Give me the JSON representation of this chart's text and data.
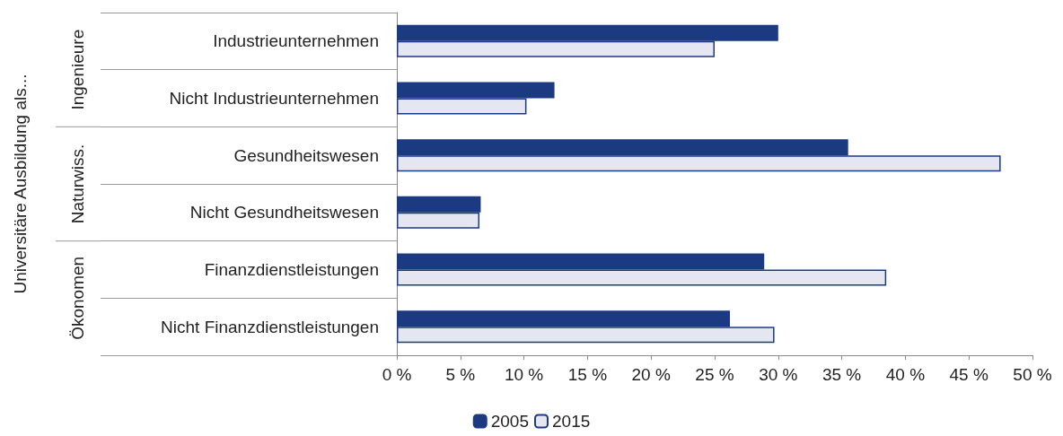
{
  "chart_data": {
    "type": "bar",
    "orientation": "horizontal",
    "categories": [
      "Industrieunternehmen",
      "Nicht Industrieunternehmen",
      "Gesundheitswesen",
      "Nicht Gesundheitswesen",
      "Finanzdienstleistungen",
      "Nicht Finanzdienstleistungen"
    ],
    "series": [
      {
        "name": "2005",
        "color": "#1c3a82",
        "values": [
          30,
          12.4,
          35.5,
          6.6,
          28.9,
          26.2
        ]
      },
      {
        "name": "2015",
        "color": "#e4e6f2",
        "values": [
          25,
          10.2,
          47.5,
          6.5,
          38.5,
          29.7
        ]
      }
    ],
    "annotations": [
      "Universitäre Ausbildung als...",
      "Ingenieure",
      "Naturwiss.",
      "Ökonomen"
    ],
    "xlim": [
      0,
      50
    ],
    "xticks": [
      {
        "value": 0,
        "label": "0 %"
      },
      {
        "value": 5,
        "label": "5 %"
      },
      {
        "value": 10,
        "label": "10 %"
      },
      {
        "value": 15,
        "label": "15 %"
      },
      {
        "value": 20,
        "label": "20 %"
      },
      {
        "value": 25,
        "label": "25 %"
      },
      {
        "value": 30,
        "label": "30 %"
      },
      {
        "value": 35,
        "label": "35 %"
      },
      {
        "value": 40,
        "label": "40 %"
      },
      {
        "value": 45,
        "label": "45 %"
      },
      {
        "value": 50,
        "label": "50 %"
      }
    ],
    "grid": false,
    "legend": "bottom"
  }
}
